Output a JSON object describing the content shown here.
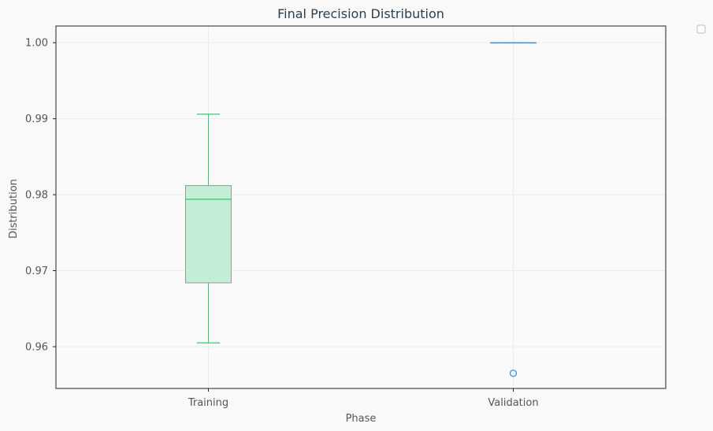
{
  "chart_data": {
    "type": "box",
    "title": "Final Precision Distribution",
    "xlabel": "Phase",
    "ylabel": "Distribution",
    "categories": [
      "Training",
      "Validation"
    ],
    "ylim": [
      0.9545,
      1.0022
    ],
    "yticks": [
      0.96,
      0.97,
      0.98,
      0.99,
      1.0
    ],
    "ytick_labels": [
      "0.96",
      "0.97",
      "0.98",
      "0.99",
      "1.00"
    ],
    "grid": true,
    "legend": "top-right (empty)",
    "boxes": [
      {
        "name": "Training",
        "whisker_low": 0.9605,
        "q1": 0.9684,
        "median": 0.9794,
        "q3": 0.9812,
        "whisker_high": 0.9906,
        "outliers": [],
        "color": "#2ecc71",
        "fill": "#c1eed5",
        "box_edge": "#999999"
      },
      {
        "name": "Validation",
        "whisker_low": 1.0,
        "q1": 1.0,
        "median": 1.0,
        "q3": 1.0,
        "whisker_high": 1.0,
        "outliers": [
          0.9565
        ],
        "color": "#3498db",
        "fill": "#c2e0f4",
        "box_edge": "#999999"
      }
    ]
  }
}
